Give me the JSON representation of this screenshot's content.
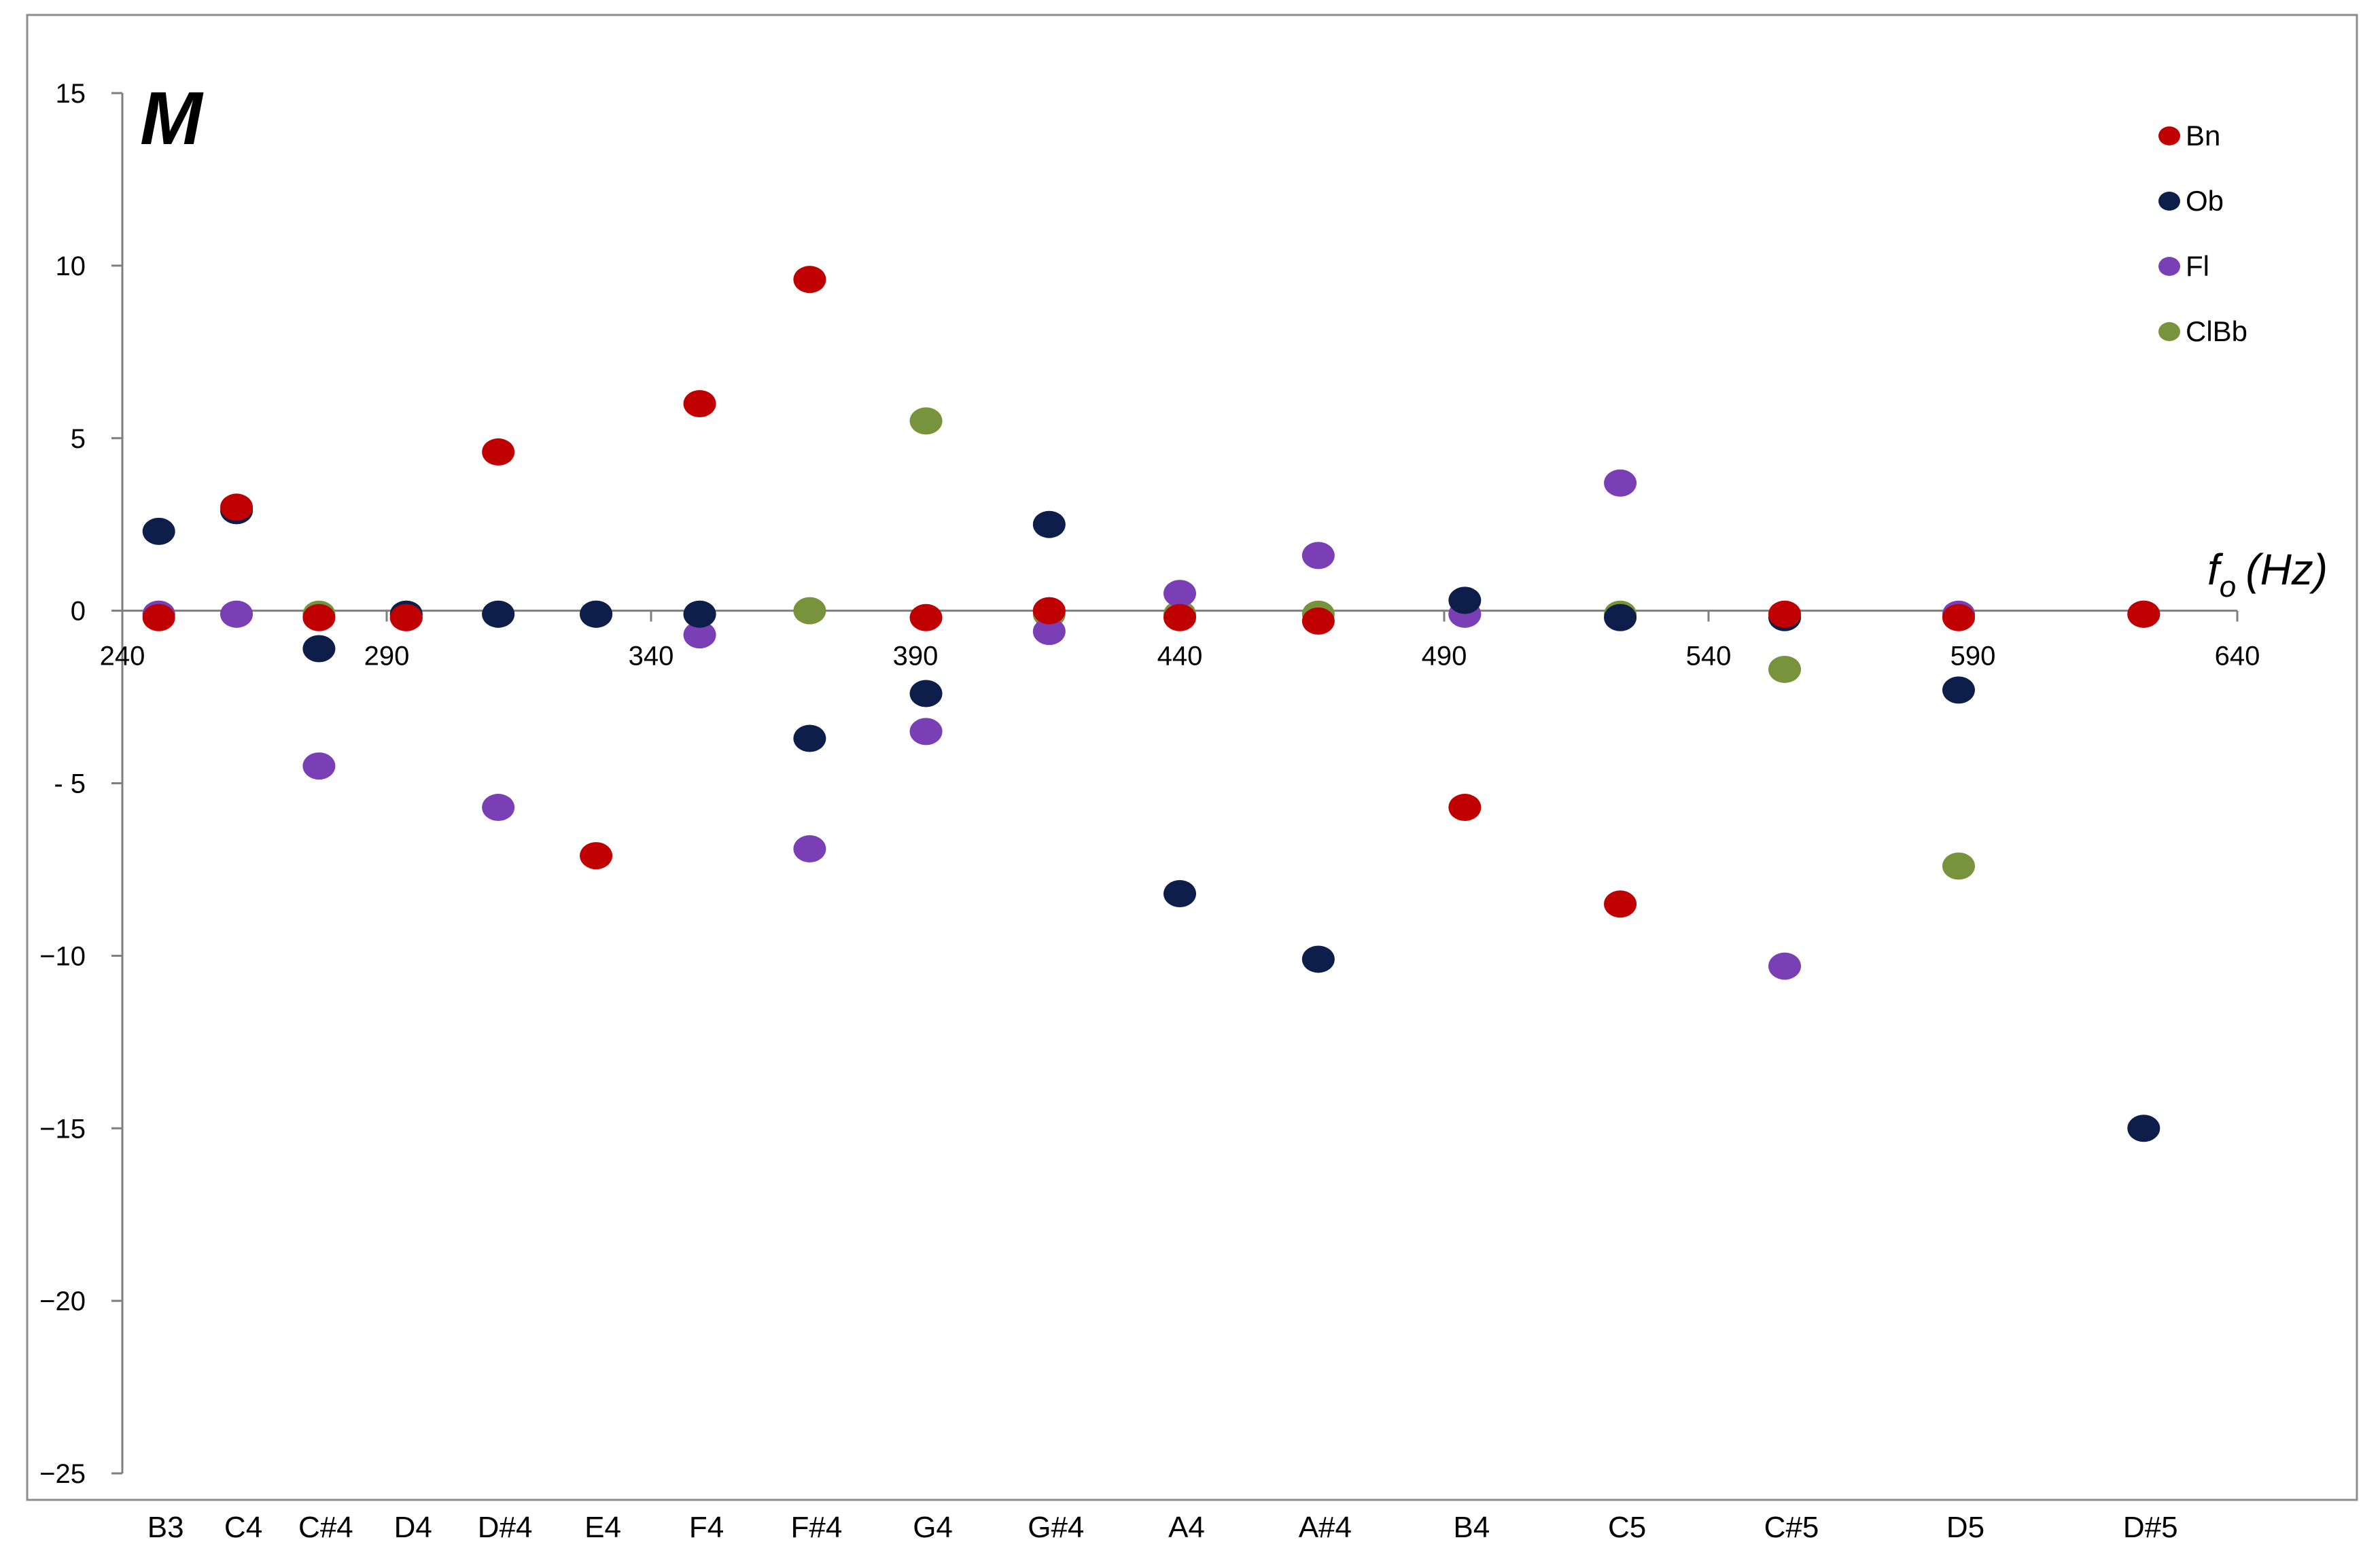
{
  "chart_data": {
    "type": "scatter",
    "panel_label": "M",
    "x_axis_label": "f",
    "x_axis_label_sub": "o",
    "x_axis_label_unit": "(Hz)",
    "ylim": [
      -25,
      15
    ],
    "xlim": [
      240,
      640
    ],
    "y_ticks": [
      15,
      10,
      5,
      0,
      -5,
      -10,
      -15,
      -20,
      -25
    ],
    "y_tick_labels": [
      "15",
      "10",
      "5",
      "0",
      "- 5",
      "−10",
      "−15",
      "−20",
      "−25"
    ],
    "x_ticks": [
      240,
      290,
      340,
      390,
      440,
      490,
      540,
      590,
      640
    ],
    "x_tick_labels": [
      "240",
      "290",
      "340",
      "390",
      "440",
      "490",
      "540",
      "590",
      "640"
    ],
    "notes": [
      {
        "label": "B3",
        "f": 246.9
      },
      {
        "label": "C4",
        "f": 261.6
      },
      {
        "label": "C#4",
        "f": 277.2
      },
      {
        "label": "D4",
        "f": 293.7
      },
      {
        "label": "D#4",
        "f": 311.1
      },
      {
        "label": "E4",
        "f": 329.6
      },
      {
        "label": "F4",
        "f": 349.2
      },
      {
        "label": "F#4",
        "f": 370.0
      },
      {
        "label": "G4",
        "f": 392.0
      },
      {
        "label": "G#4",
        "f": 415.3
      },
      {
        "label": "A4",
        "f": 440.0
      },
      {
        "label": "A#4",
        "f": 466.2
      },
      {
        "label": "B4",
        "f": 493.9
      },
      {
        "label": "C5",
        "f": 523.3
      },
      {
        "label": "C#5",
        "f": 554.4
      },
      {
        "label": "D5",
        "f": 587.3
      },
      {
        "label": "D#5",
        "f": 622.3
      }
    ],
    "grid": false,
    "legend_position": "top-right",
    "series": [
      {
        "name": "Bn",
        "color": "#c00000",
        "points": [
          [
            246.9,
            -0.2
          ],
          [
            261.6,
            3.0
          ],
          [
            277.2,
            -0.2
          ],
          [
            293.7,
            -0.2
          ],
          [
            311.1,
            4.6
          ],
          [
            329.6,
            -7.1
          ],
          [
            349.2,
            6.0
          ],
          [
            370.0,
            9.6
          ],
          [
            392.0,
            -0.2
          ],
          [
            415.3,
            0.0
          ],
          [
            440.0,
            -0.2
          ],
          [
            466.2,
            -0.3
          ],
          [
            493.9,
            -5.7
          ],
          [
            523.3,
            -8.5
          ],
          [
            554.4,
            -0.1
          ],
          [
            587.3,
            -0.2
          ],
          [
            622.3,
            -0.1
          ]
        ]
      },
      {
        "name": "Ob",
        "color": "#0d1e4a",
        "points": [
          [
            246.9,
            2.3
          ],
          [
            261.6,
            2.9
          ],
          [
            277.2,
            -1.1
          ],
          [
            293.7,
            -0.1
          ],
          [
            311.1,
            -0.1
          ],
          [
            329.6,
            -0.1
          ],
          [
            349.2,
            -0.1
          ],
          [
            370.0,
            -3.7
          ],
          [
            392.0,
            -2.4
          ],
          [
            415.3,
            2.5
          ],
          [
            440.0,
            -8.2
          ],
          [
            466.2,
            -10.1
          ],
          [
            493.9,
            0.3
          ],
          [
            523.3,
            -0.2
          ],
          [
            554.4,
            -0.2
          ],
          [
            587.3,
            -2.3
          ],
          [
            622.3,
            -15.0
          ]
        ]
      },
      {
        "name": "Fl",
        "color": "#7b3fb5",
        "points": [
          [
            246.9,
            -0.1
          ],
          [
            261.6,
            -0.1
          ],
          [
            277.2,
            -4.5
          ],
          [
            293.7,
            -0.2
          ],
          [
            311.1,
            -5.7
          ],
          [
            329.6,
            -0.1
          ],
          [
            349.2,
            -0.7
          ],
          [
            370.0,
            -6.9
          ],
          [
            392.0,
            -3.5
          ],
          [
            415.3,
            -0.6
          ],
          [
            440.0,
            0.5
          ],
          [
            466.2,
            1.6
          ],
          [
            493.9,
            -0.1
          ],
          [
            523.3,
            3.7
          ],
          [
            554.4,
            -10.3
          ],
          [
            587.3,
            -0.1
          ],
          [
            622.3,
            -0.1
          ]
        ]
      },
      {
        "name": "ClBb",
        "color": "#77933c",
        "points": [
          [
            246.9,
            -0.1
          ],
          [
            261.6,
            -0.1
          ],
          [
            277.2,
            -0.1
          ],
          [
            293.7,
            -0.1
          ],
          [
            311.1,
            -0.1
          ],
          [
            329.6,
            -0.1
          ],
          [
            349.2,
            -0.1
          ],
          [
            370.0,
            0.0
          ],
          [
            392.0,
            5.5
          ],
          [
            415.3,
            -0.1
          ],
          [
            440.0,
            -0.1
          ],
          [
            466.2,
            -0.1
          ],
          [
            493.9,
            -0.1
          ],
          [
            523.3,
            -0.1
          ],
          [
            554.4,
            -1.7
          ],
          [
            587.3,
            -7.4
          ],
          [
            622.3,
            -0.1
          ]
        ]
      }
    ]
  }
}
